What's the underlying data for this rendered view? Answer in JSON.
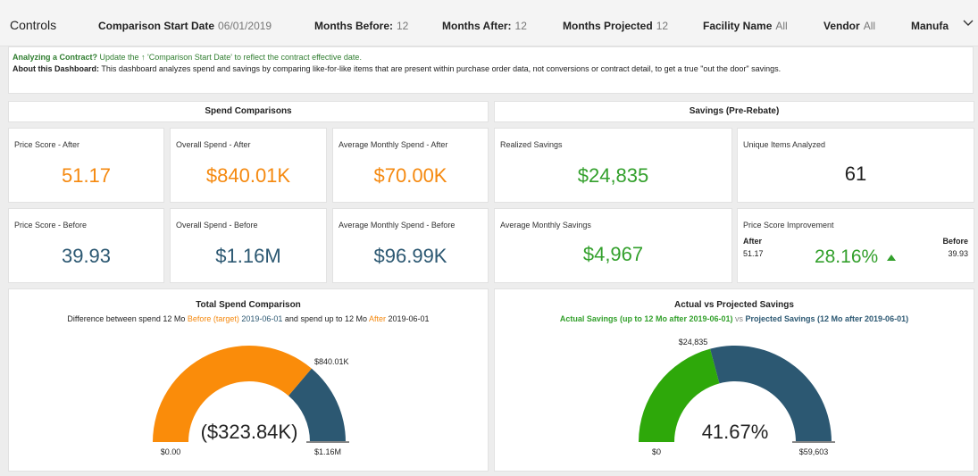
{
  "controls": {
    "title": "Controls",
    "items": [
      {
        "label": "Comparison Start Date",
        "value": "06/01/2019"
      },
      {
        "label": "Months Before:",
        "value": "12"
      },
      {
        "label": "Months After:",
        "value": "12"
      },
      {
        "label": "Months Projected",
        "value": "12"
      },
      {
        "label": "Facility Name",
        "value": "All"
      },
      {
        "label": "Vendor",
        "value": "All"
      },
      {
        "label": "Manufa",
        "value": ""
      }
    ]
  },
  "info": {
    "line1_bold": "Analyzing a Contract?",
    "line1_text": " Update the  ↑ 'Comparison Start Date'  to reflect the contract effective date.",
    "line2_bold": "About this Dashboard:",
    "line2_text": " This dashboard analyzes spend and savings by comparing like-for-like items that are present within purchase order data, not conversions or contract detail, to get a true \"out the door\" savings."
  },
  "sections": {
    "spend": "Spend Comparisons",
    "savings": "Savings (Pre-Rebate)"
  },
  "kpis": {
    "price_after": {
      "label": "Price Score - After",
      "value": "51.17"
    },
    "spend_after": {
      "label": "Overall Spend - After",
      "value": "$840.01K"
    },
    "monthly_after": {
      "label": "Average Monthly Spend - After",
      "value": "$70.00K"
    },
    "realized": {
      "label": "Realized Savings",
      "value": "$24,835"
    },
    "unique": {
      "label": "Unique Items Analyzed",
      "value": "61"
    },
    "price_before": {
      "label": "Price Score - Before",
      "value": "39.93"
    },
    "spend_before": {
      "label": "Overall Spend - Before",
      "value": "$1.16M"
    },
    "monthly_before": {
      "label": "Average Monthly Spend - Before",
      "value": "$96.99K"
    },
    "avg_savings": {
      "label": "Average Monthly Savings",
      "value": "$4,967"
    },
    "improvement": {
      "label": "Price Score Improvement",
      "after_label": "After",
      "after_value": "51.17",
      "before_label": "Before",
      "before_value": "39.93",
      "value": "28.16%"
    }
  },
  "gauge1": {
    "title": "Total Spend Comparison",
    "sub_1": "Difference between spend 12 Mo ",
    "sub_before": "Before (target)",
    "sub_date1": " 2019-06-01",
    "sub_2": " and spend up to 12 Mo ",
    "sub_after": "After",
    "sub_date2": " 2019-06-01",
    "center": "($323.84K)",
    "min_label": "$0.00",
    "max_label": "$1.16M",
    "marker_label": "$840.01K",
    "fraction": 0.7239,
    "fill_color": "#fa8c0a",
    "rest_color": "#2c5872"
  },
  "gauge2": {
    "title": "Actual vs Projected Savings",
    "sub_actual": "Actual Savings (up to 12 Mo after 2019-06-01)",
    "sub_vs": " vs ",
    "sub_projected": "Projected Savings (12 Mo after 2019-06-01)",
    "center": "41.67%",
    "min_label": "$0",
    "max_label": "$59,603",
    "marker_label": "$24,835",
    "fraction": 0.4167,
    "fill_color": "#2ea80a",
    "rest_color": "#2c5872"
  }
}
